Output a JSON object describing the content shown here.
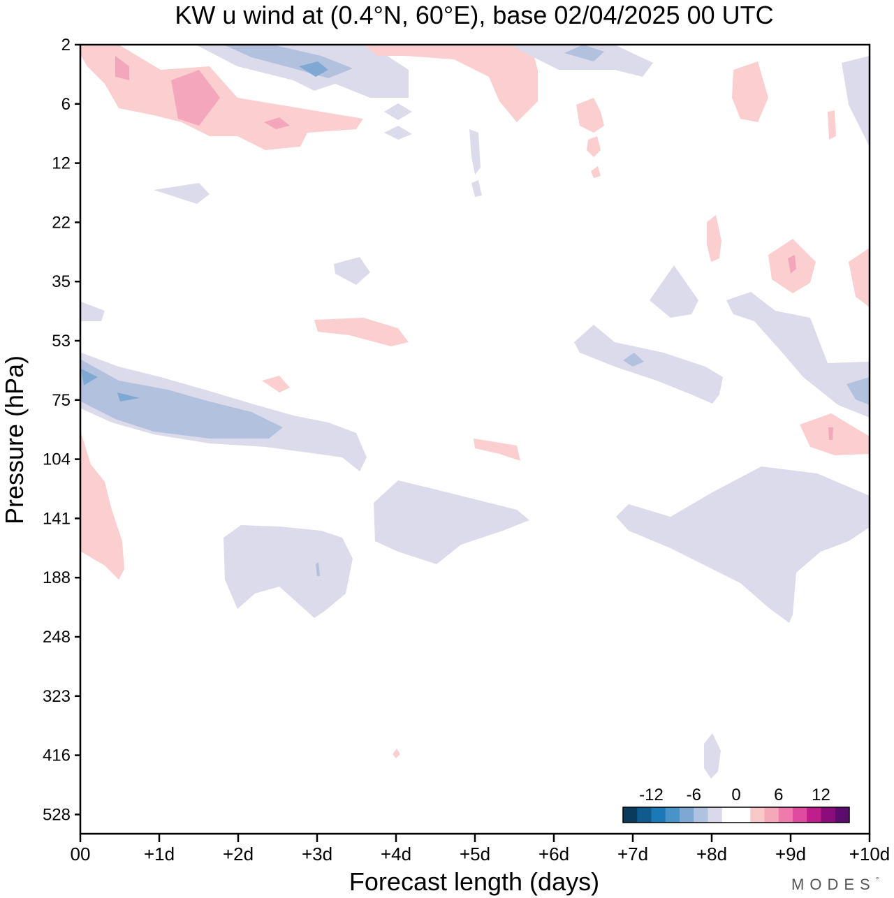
{
  "chart_data": {
    "type": "contour",
    "title": "KW u wind at (0.4°N, 60°E),  base 02/04/2025  00 UTC",
    "xlabel": "Forecast length (days)",
    "ylabel": "Pressure (hPa)",
    "xlim": [
      0,
      10
    ],
    "x_ticks": [
      {
        "value": 0,
        "label": "00"
      },
      {
        "value": 1,
        "label": "+1d"
      },
      {
        "value": 2,
        "label": "+2d"
      },
      {
        "value": 3,
        "label": "+3d"
      },
      {
        "value": 4,
        "label": "+4d"
      },
      {
        "value": 5,
        "label": "+5d"
      },
      {
        "value": 6,
        "label": "+6d"
      },
      {
        "value": 7,
        "label": "+7d"
      },
      {
        "value": 8,
        "label": "+8d"
      },
      {
        "value": 9,
        "label": "+9d"
      },
      {
        "value": 10,
        "label": "+10d"
      }
    ],
    "y_ticks": [
      "2",
      "6",
      "12",
      "22",
      "35",
      "53",
      "75",
      "104",
      "141",
      "188",
      "248",
      "323",
      "416",
      "528"
    ],
    "y_inverted": true,
    "colorbar": {
      "orientation": "horizontal",
      "tick_labels": [
        "-12",
        "-6",
        "0",
        "6",
        "12"
      ],
      "colors": [
        "#0a3a5c",
        "#0f5b8e",
        "#1c79b8",
        "#4893c8",
        "#7ea8d3",
        "#afc2e0",
        "#d9d9eb",
        "#ffffff",
        "#ffffff",
        "#f9c9c8",
        "#f6a8b8",
        "#f07aac",
        "#e04aa0",
        "#c01e8c",
        "#8c0c7c",
        "#5c0b6e"
      ]
    },
    "fill_colors": {
      "weak_negative": "#dcdbeb",
      "moderate_negative": "#b2c1de",
      "strong_negative": "#7fa9d2",
      "weak_positive": "#fbcfcf",
      "moderate_positive": "#f4a6bd",
      "strong_positive": "#e9739f"
    },
    "regions": [
      {
        "id": "pos-upper-band",
        "sign": "positive"
      },
      {
        "id": "neg-upper-band",
        "sign": "negative"
      },
      {
        "id": "neg-75hPa-band",
        "sign": "negative"
      },
      {
        "id": "pos-lower-left",
        "sign": "positive"
      },
      {
        "id": "neg-141hPa-day3",
        "sign": "negative"
      },
      {
        "id": "neg-141hPa-day4",
        "sign": "negative"
      },
      {
        "id": "neg-141hPa-day8",
        "sign": "negative"
      },
      {
        "id": "neg-53hPa-day8",
        "sign": "negative"
      },
      {
        "id": "pos-upper-right",
        "sign": "positive"
      },
      {
        "id": "neg-416hPa-day8",
        "sign": "negative"
      }
    ]
  },
  "branding": {
    "logo_text": "MODES",
    "logo_mark": "°"
  }
}
